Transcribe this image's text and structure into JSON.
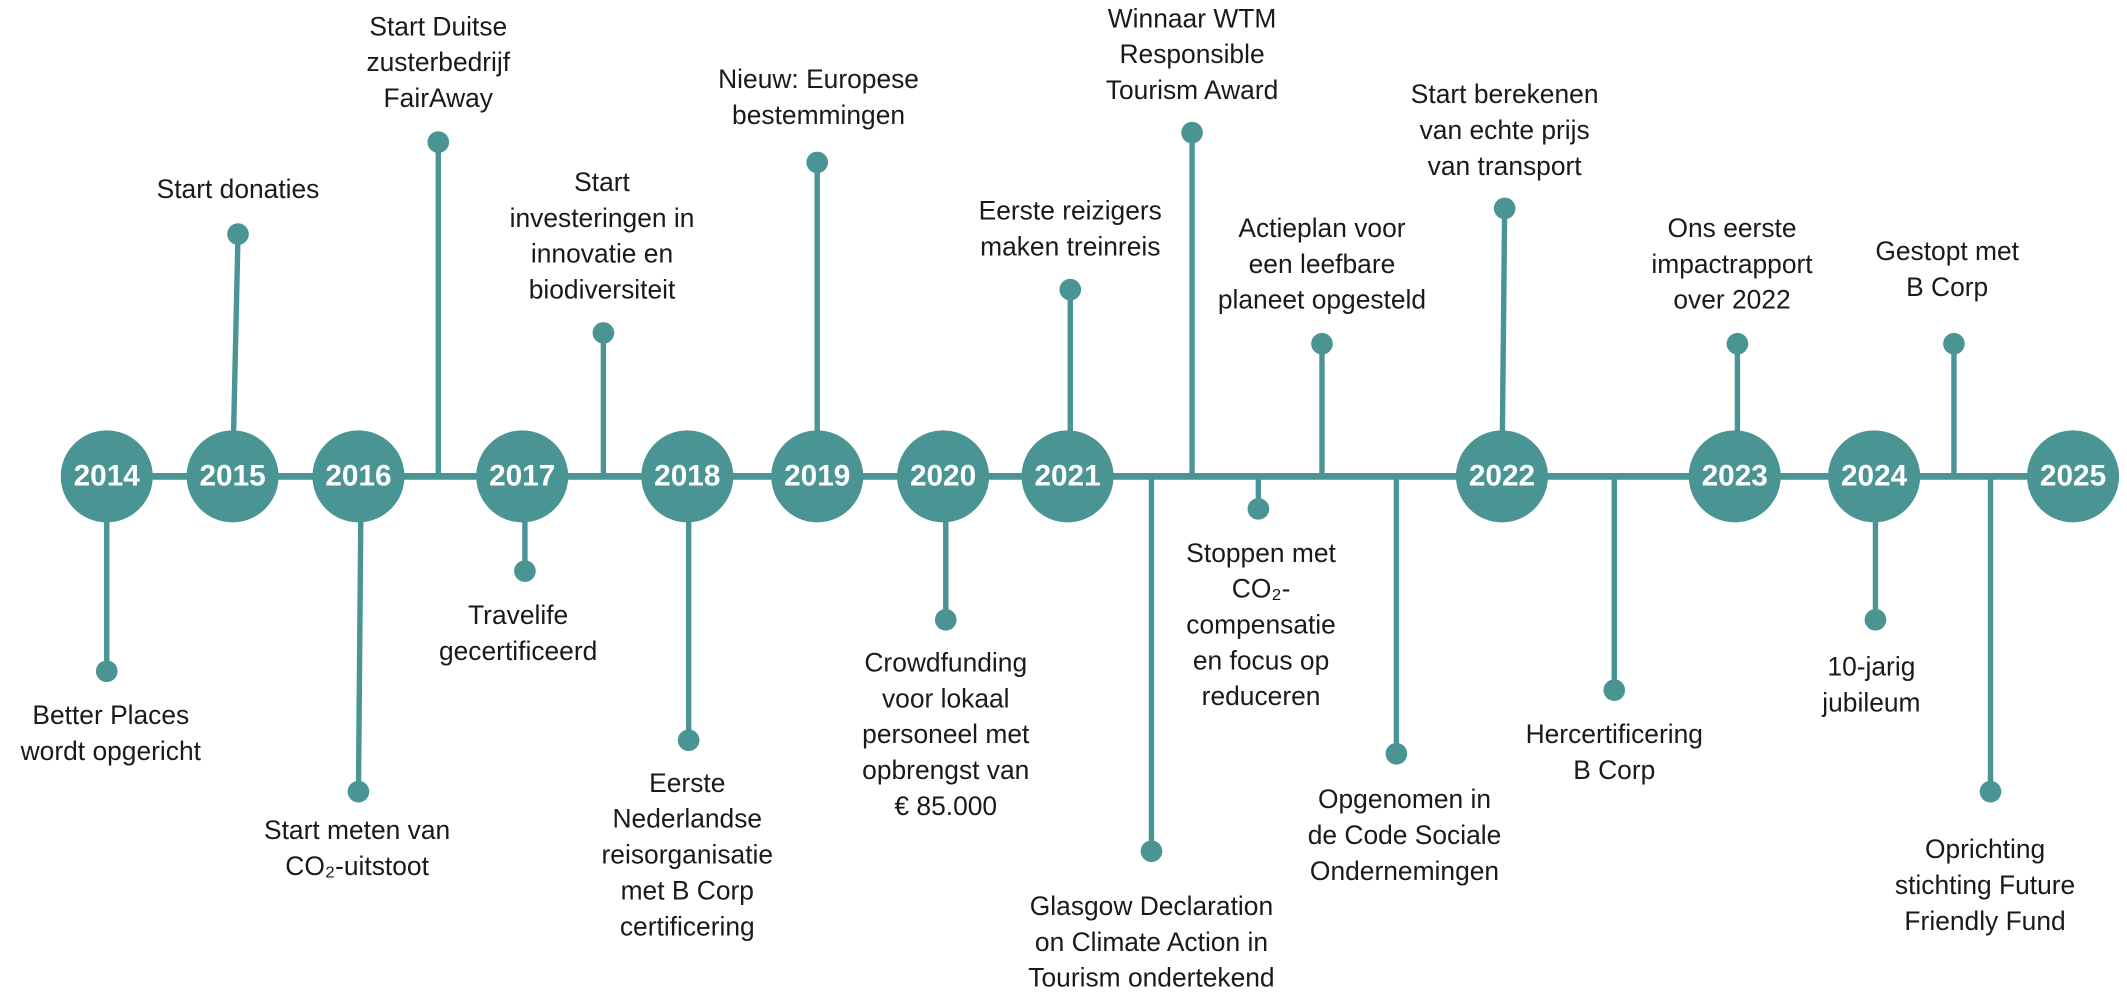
{
  "years": [
    "2014",
    "2015",
    "2016",
    "2017",
    "2018",
    "2019",
    "2020",
    "2021",
    "2022",
    "2023",
    "2024",
    "2025"
  ],
  "events": [
    {
      "lines": [
        "Better Places",
        "wordt opgericht"
      ]
    },
    {
      "lines": [
        "Start donaties"
      ]
    },
    {
      "lines": [
        "Start meten van",
        "CO₂-uitstoot"
      ]
    },
    {
      "lines": [
        "Start Duitse",
        "zusterbedrijf",
        "FairAway"
      ]
    },
    {
      "lines": [
        "Travelife",
        "gecertificeerd"
      ]
    },
    {
      "lines": [
        "Start",
        "investeringen in",
        "innovatie en",
        "biodiversiteit"
      ]
    },
    {
      "lines": [
        "Eerste",
        "Nederlandse",
        "reisorganisatie",
        "met B Corp",
        "certificering"
      ]
    },
    {
      "lines": [
        "Nieuw: Europese",
        "bestemmingen"
      ]
    },
    {
      "lines": [
        "Crowdfunding",
        "voor lokaal",
        "personeel met",
        "opbrengst van",
        "€ 85.000"
      ]
    },
    {
      "lines": [
        "Eerste reizigers",
        "maken treinreis"
      ]
    },
    {
      "lines": [
        "Glasgow Declaration",
        "on Climate Action in",
        "Tourism ondertekend"
      ]
    },
    {
      "lines": [
        "Winnaar WTM",
        "Responsible",
        "Tourism Award"
      ]
    },
    {
      "lines": [
        "Stoppen met",
        "CO₂-",
        "compensatie",
        "en focus op",
        "reduceren"
      ]
    },
    {
      "lines": [
        "Actieplan voor",
        "een leefbare",
        "planeet opgesteld"
      ]
    },
    {
      "lines": [
        "Opgenomen in",
        "de Code Sociale",
        "Ondernemingen"
      ]
    },
    {
      "lines": [
        "Start berekenen",
        "van echte prijs",
        "van transport"
      ]
    },
    {
      "lines": [
        "Hercertificering",
        "B Corp"
      ]
    },
    {
      "lines": [
        "Ons eerste",
        "impactrapport",
        "over 2022"
      ]
    },
    {
      "lines": [
        "10-jarig",
        "jubileum"
      ]
    },
    {
      "lines": [
        "Gestopt met",
        "B Corp"
      ]
    },
    {
      "lines": [
        "Oprichting",
        "stichting Future",
        "Friendly Fund"
      ]
    }
  ]
}
